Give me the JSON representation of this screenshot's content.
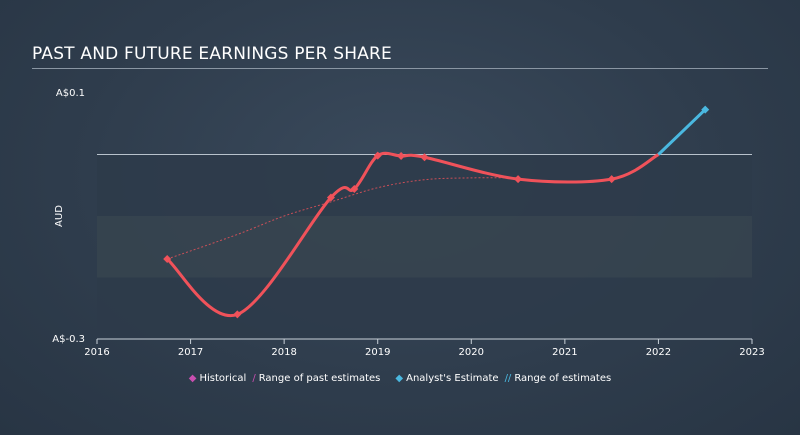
{
  "title": "PAST AND FUTURE EARNINGS PER SHARE",
  "colors": {
    "historical": "#f0525a",
    "estimate": "#4ab8e0",
    "legend_historical": "#c94fb0",
    "legend_estimate": "#4ab8e0",
    "band_dark": "#2e3b4a",
    "band_light": "#36444f",
    "zero_line": "#b8c2cc"
  },
  "legend": {
    "historical": "Historical",
    "range_past": "Range of past estimates",
    "analyst": "Analyst's Estimate",
    "range_est": "Range of estimates"
  },
  "chart_data": {
    "type": "line",
    "title": "PAST AND FUTURE EARNINGS PER SHARE",
    "ylabel": "AUD",
    "y_tick_labels": [
      "A$0.1",
      "A$-0.3"
    ],
    "ylim": [
      -0.3,
      0.1
    ],
    "xlim": [
      2016,
      2023
    ],
    "x_ticks": [
      2016,
      2017,
      2018,
      2019,
      2020,
      2021,
      2022,
      2023
    ],
    "x_tick_labels": [
      "2016",
      "2017",
      "2018",
      "2019",
      "2020",
      "2021",
      "2022",
      "2023"
    ],
    "series": [
      {
        "name": "Historical",
        "points": [
          [
            2016.75,
            -0.17
          ],
          [
            2017.5,
            -0.26
          ],
          [
            2018.5,
            -0.07
          ],
          [
            2018.75,
            -0.056
          ],
          [
            2019.0,
            -0.0018
          ],
          [
            2019.25,
            -0.0025
          ],
          [
            2019.5,
            -0.0045
          ],
          [
            2020.5,
            -0.04
          ],
          [
            2021.5,
            -0.04
          ],
          [
            2022.0,
            0.0
          ]
        ],
        "markers": [
          [
            2016.75,
            -0.17
          ],
          [
            2017.5,
            -0.26
          ],
          [
            2018.5,
            -0.07
          ],
          [
            2018.75,
            -0.056
          ],
          [
            2019.0,
            -0.0018
          ],
          [
            2019.25,
            -0.0025
          ],
          [
            2019.5,
            -0.0045
          ],
          [
            2020.5,
            -0.04
          ],
          [
            2021.5,
            -0.04
          ]
        ]
      },
      {
        "name": "Analyst's Estimate",
        "points": [
          [
            2022.0,
            0.0
          ],
          [
            2022.5,
            0.073
          ]
        ],
        "markers": [
          [
            2022.5,
            0.073
          ]
        ]
      },
      {
        "name": "Range of past estimates",
        "points": [
          [
            2016.75,
            -0.17
          ],
          [
            2017.5,
            -0.13
          ],
          [
            2018.0,
            -0.1
          ],
          [
            2018.5,
            -0.077
          ],
          [
            2019.0,
            -0.054
          ],
          [
            2019.5,
            -0.041
          ],
          [
            2020.0,
            -0.038
          ],
          [
            2020.5,
            -0.038
          ]
        ]
      }
    ]
  }
}
